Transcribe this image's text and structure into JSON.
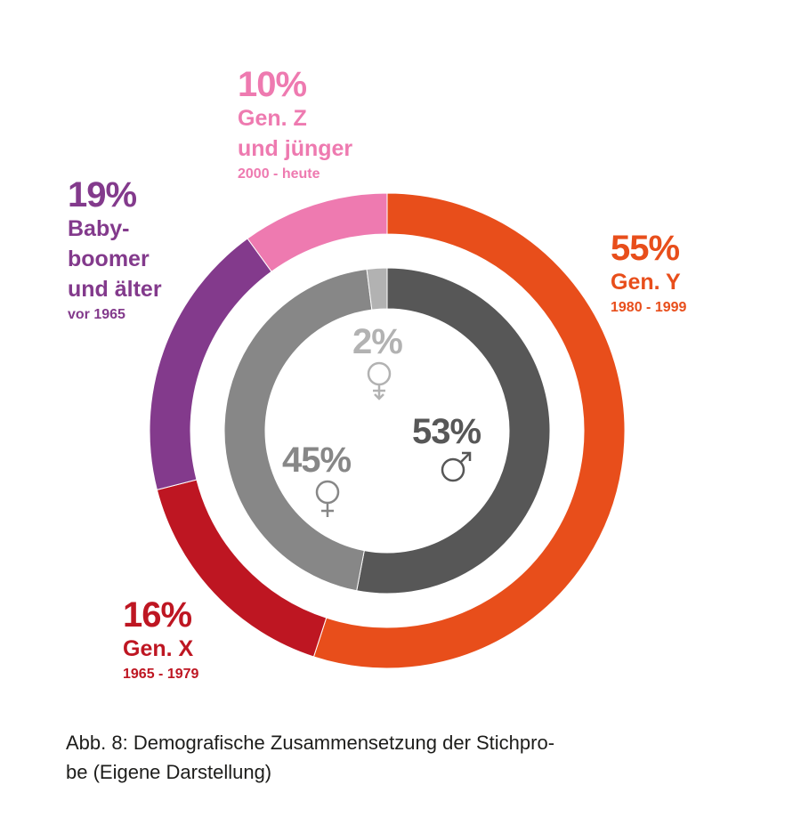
{
  "chart_data": [
    {
      "type": "pie",
      "variant": "donut",
      "ring": "outer",
      "start": "12 o'clock, clockwise",
      "slices": [
        {
          "percent_label": "55%",
          "value": 55,
          "name": "Gen. Y",
          "range": "1980 - 1999",
          "color": "#E84E1B"
        },
        {
          "percent_label": "16%",
          "value": 16,
          "name": "Gen. X",
          "range": "1965 - 1979",
          "color": "#BE1622"
        },
        {
          "percent_label": "19%",
          "value": 19,
          "name": "Baby-boomer und älter",
          "name_lines": [
            "Baby-",
            "boomer",
            "und älter"
          ],
          "range": "vor 1965",
          "color": "#833A8C"
        },
        {
          "percent_label": "10%",
          "value": 10,
          "name": "Gen. Z und jünger",
          "name_lines": [
            "Gen. Z",
            "und jünger"
          ],
          "range": "2000 - heute",
          "color": "#EE7AB0"
        }
      ]
    },
    {
      "type": "pie",
      "variant": "donut",
      "ring": "inner",
      "start": "12 o'clock, clockwise",
      "slices": [
        {
          "percent_label": "53%",
          "value": 53,
          "icon": "male-icon",
          "color": "#575757"
        },
        {
          "percent_label": "45%",
          "value": 45,
          "icon": "female-icon",
          "color": "#878787"
        },
        {
          "percent_label": "2%",
          "value": 2,
          "icon": "diverse-icon",
          "color": "#B2B2B2"
        }
      ]
    }
  ],
  "caption": "Abb. 8: Demografische Zusammensetzung der Stichprobe (Eigene Darstellung)",
  "caption_lines": [
    "Abb. 8: Demografische Zusammensetzung der Stichpro-",
    "be (Eigene Darstellung)"
  ]
}
